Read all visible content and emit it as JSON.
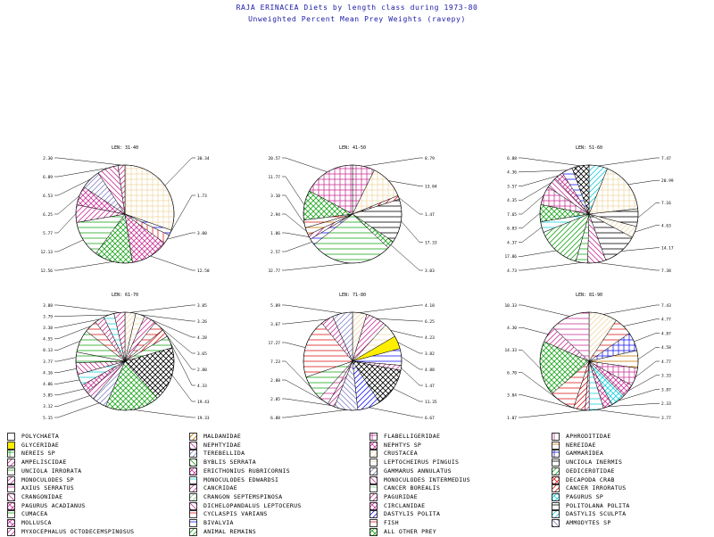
{
  "header": {
    "title": "RAJA ERINACEA Diets by length class during 1973-80",
    "subtitle": "Unweighted Percent Mean Prey Weights (ravepy)"
  },
  "legend": [
    {
      "label": "POLYCHAETA",
      "color": "#1a1aff",
      "pattern": "solid-white"
    },
    {
      "label": "GLYCERIDAE",
      "color": "#ffee00",
      "pattern": "solid"
    },
    {
      "label": "NEREIS SP",
      "color": "#1aa61a",
      "pattern": "grid"
    },
    {
      "label": "AMPELISCIDAE",
      "color": "#cc3399",
      "pattern": "diag"
    },
    {
      "label": "UNCIOLA IRRORATA",
      "color": "#1aa61a",
      "pattern": "hlines"
    },
    {
      "label": "MONOCULODES SP",
      "color": "#cc3399",
      "pattern": "diag"
    },
    {
      "label": "AXIUS SERRATUS",
      "color": "#cc3399",
      "pattern": "hlines"
    },
    {
      "label": "CRANGONIDAE",
      "color": "#cc3399",
      "pattern": "diag2"
    },
    {
      "label": "PAGURUS ACADIANUS",
      "color": "#cc3399",
      "pattern": "cross"
    },
    {
      "label": "CUMACEA",
      "color": "#1aa61a",
      "pattern": "hlines"
    },
    {
      "label": "MOLLUSCA",
      "color": "#cc3399",
      "pattern": "cross"
    },
    {
      "label": "MYXOCEPHALUS OCTODECEMSPINOSUS",
      "color": "#cc3399",
      "pattern": "diag"
    },
    {
      "label": "MALDANIDAE",
      "color": "#cc7a00",
      "pattern": "diag"
    },
    {
      "label": "NEPHTYIDAE",
      "color": "#cc3399",
      "pattern": "diag2"
    },
    {
      "label": "TEREBELLIDA",
      "color": "#8888cc",
      "pattern": "diag"
    },
    {
      "label": "BYBLIS SERRATA",
      "color": "#1aa61a",
      "pattern": "diag2"
    },
    {
      "label": "ERICTHONIUS RUBRICORNIS",
      "color": "#cc3399",
      "pattern": "cross"
    },
    {
      "label": "MONOCULODES EDWARDSI",
      "color": "#1ad0e0",
      "pattern": "hlines"
    },
    {
      "label": "CANCRIDAE",
      "color": "#cc3399",
      "pattern": "diag"
    },
    {
      "label": "CRANGON SEPTEMSPINOSA",
      "color": "#88cc88",
      "pattern": "diag"
    },
    {
      "label": "DICHELOPANDALUS LEPTOCERUS",
      "color": "#cc3399",
      "pattern": "diag2"
    },
    {
      "label": "CYCLASPIS VARIANS",
      "color": "#e01a1a",
      "pattern": "hlines"
    },
    {
      "label": "BIVALVIA",
      "color": "#1a1aff",
      "pattern": "hlines"
    },
    {
      "label": "ANIMAL REMAINS",
      "color": "#1aa61a",
      "pattern": "diag"
    },
    {
      "label": "FLABELLIGERIDAE",
      "color": "#cc3399",
      "pattern": "grid"
    },
    {
      "label": "NEPHTYS SP",
      "color": "#cc3399",
      "pattern": "cross"
    },
    {
      "label": "CRUSTACEA",
      "color": "#f0d9a8",
      "pattern": "diag"
    },
    {
      "label": "LEPTOCHEIRUS PINGUIS",
      "color": "#f0d9a8",
      "pattern": "hlines"
    },
    {
      "label": "GAMMARUS ANNULATUS",
      "color": "#8888cc",
      "pattern": "diag"
    },
    {
      "label": "MONOCULODES INTERMEDIUS",
      "color": "#cc3399",
      "pattern": "diag2"
    },
    {
      "label": "CANCER BOREALIS",
      "color": "#88cc88",
      "pattern": "hlines"
    },
    {
      "label": "PAGURIDAE",
      "color": "#cc3399",
      "pattern": "diag"
    },
    {
      "label": "CIRCLANIDAE",
      "color": "#cc3399",
      "pattern": "cross"
    },
    {
      "label": "DASTYLIS POLITA",
      "color": "#1a1aff",
      "pattern": "diag"
    },
    {
      "label": "FISH",
      "color": "#e01a1a",
      "pattern": "hlines"
    },
    {
      "label": "ALL OTHER PREY",
      "color": "#1aa61a",
      "pattern": "cross"
    },
    {
      "label": "APHRODITIDAE",
      "color": "#cc3399",
      "pattern": "vlines"
    },
    {
      "label": "NEREIDAE",
      "color": "#cc7a00",
      "pattern": "hlines"
    },
    {
      "label": "GAMMARIDEA",
      "color": "#1a1aff",
      "pattern": "grid"
    },
    {
      "label": "UNCIOLA INERMIS",
      "color": "#000000",
      "pattern": "hlines"
    },
    {
      "label": "OEDICEROTIDAE",
      "color": "#1aa61a",
      "pattern": "diag"
    },
    {
      "label": "DECAPODA CRAB",
      "color": "#e01a1a",
      "pattern": "cross"
    },
    {
      "label": "CANCER IRRORATUS",
      "color": "#e01a1a",
      "pattern": "diag"
    },
    {
      "label": "PAGURUS SP",
      "color": "#1ad0e0",
      "pattern": "cross"
    },
    {
      "label": "POLITOLANA POLITA",
      "color": "#000000",
      "pattern": "hlines"
    },
    {
      "label": "DASTYLIS SCULPTA",
      "color": "#1ad0e0",
      "pattern": "diag"
    },
    {
      "label": "AMMODYTES SP",
      "color": "#8888cc",
      "pattern": "diag2"
    }
  ],
  "chart_data": [
    {
      "type": "pie",
      "title": "LEN: 31-40",
      "slices": [
        {
          "name": "CRUSTACEA",
          "value": 30.34,
          "color": "#f0d9a8",
          "pattern": "grid",
          "label": "30.34"
        },
        {
          "name": "PAGURUS SP",
          "value": 1.73,
          "color": "#1a1aff",
          "pattern": "hlines",
          "label": "1.73"
        },
        {
          "name": "FISH",
          "value": 3.0,
          "color": "#e01a1a",
          "pattern": "vlines",
          "label": "3.00"
        },
        {
          "name": "DECAPODA CRAB",
          "value": 12.5,
          "color": "#cc3399",
          "pattern": "cross",
          "label": "12.50"
        },
        {
          "name": "OEDICEROTIDAE",
          "value": 12.56,
          "color": "#1aa61a",
          "pattern": "cross",
          "label": "12.56"
        },
        {
          "name": "CUMACEA",
          "value": 12.13,
          "color": "#1aa61a",
          "pattern": "hlines",
          "label": "12.13"
        },
        {
          "name": "AMPELISCIDAE",
          "value": 5.77,
          "color": "#cc3399",
          "pattern": "diag",
          "label": "5.77"
        },
        {
          "name": "MOLLUSCA",
          "value": 6.25,
          "color": "#cc3399",
          "pattern": "cross",
          "label": "6.25"
        },
        {
          "name": "MONOCULODES SP",
          "value": 6.53,
          "color": "#8888cc",
          "pattern": "diag",
          "label": "6.53"
        },
        {
          "name": "CANCRIDAE",
          "value": 6.89,
          "color": "#cc3399",
          "pattern": "diag2",
          "label": "6.89"
        },
        {
          "name": "PAGURUS ACADIANUS",
          "value": 2.3,
          "color": "#cc3399",
          "pattern": "diag",
          "label": "2.30"
        }
      ]
    },
    {
      "type": "pie",
      "title": "LEN: 41-50",
      "slices": [
        {
          "name": "AMPELISCIDAE",
          "value": 8.79,
          "color": "#cc3399",
          "pattern": "grid",
          "label": "8.79"
        },
        {
          "name": "CRUSTACEA",
          "value": 13.84,
          "color": "#f0d9a8",
          "pattern": "grid",
          "label": "13.84"
        },
        {
          "name": "CYCLASPIS VARIANS",
          "value": 1.47,
          "color": "#e01a1a",
          "pattern": "diag",
          "label": "1.47"
        },
        {
          "name": "CANCER BOREALIS",
          "value": 17.33,
          "color": "#000000",
          "pattern": "hlines",
          "label": "17.33"
        },
        {
          "name": "ALL OTHER PREY",
          "value": 3.03,
          "color": "#1aa61a",
          "pattern": "cross",
          "label": "3.03"
        },
        {
          "name": "NEREIS SP",
          "value": 32.77,
          "color": "#1aa61a",
          "pattern": "hlines",
          "label": "32.77"
        },
        {
          "name": "BYBLIS SERRATA",
          "value": 2.57,
          "color": "#1a1aff",
          "pattern": "hlines",
          "label": "2.57"
        },
        {
          "name": "AXIUS SERRATUS",
          "value": 1.86,
          "color": "#cc3399",
          "pattern": "diag",
          "label": "1.86"
        },
        {
          "name": "MALDANIDAE",
          "value": 2.94,
          "color": "#cc7a00",
          "pattern": "hlines",
          "label": "2.94"
        },
        {
          "name": "CRANGON SEPTEMSPINOSA",
          "value": 3.1,
          "color": "#e01a1a",
          "pattern": "hlines",
          "label": "3.10"
        },
        {
          "name": "OEDICEROTIDAE",
          "value": 11.77,
          "color": "#1aa61a",
          "pattern": "cross",
          "label": "11.77"
        },
        {
          "name": "CANCER IRRORATUS",
          "value": 20.57,
          "color": "#cc3399",
          "pattern": "grid",
          "label": "20.57"
        }
      ]
    },
    {
      "type": "pie",
      "title": "LEN: 51-60",
      "slices": [
        {
          "name": "CRUSTACEA",
          "value": 7.47,
          "color": "#1ad0e0",
          "pattern": "diag",
          "label": "7.47"
        },
        {
          "name": "GAMMARIDEA",
          "value": 20.99,
          "color": "#f0d9a8",
          "pattern": "grid",
          "label": "20.99"
        },
        {
          "name": "UNCIOLA INERMIS",
          "value": 7.16,
          "color": "#000000",
          "pattern": "hlines",
          "label": "7.16"
        },
        {
          "name": "LEPTOCHEIRUS PINGUIS",
          "value": 4.63,
          "color": "#f0d9a8",
          "pattern": "diag",
          "label": "4.63"
        },
        {
          "name": "CANCER BOREALIS",
          "value": 14.17,
          "color": "#000000",
          "pattern": "hlines",
          "label": "14.17"
        },
        {
          "name": "DICHELOPANDALUS LEPTOCERUS",
          "value": 7.38,
          "color": "#cc3399",
          "pattern": "diag2",
          "label": "7.38"
        },
        {
          "name": "NEREIDAE",
          "value": 4.73,
          "color": "#1aa61a",
          "pattern": "hlines",
          "label": "4.73"
        },
        {
          "name": "PAGURUS ACADIANUS",
          "value": 17.86,
          "color": "#1aa61a",
          "pattern": "diag",
          "label": "17.86"
        },
        {
          "name": "MONOCULODES EDWARDSI",
          "value": 4.37,
          "color": "#1ad0e0",
          "pattern": "hlines",
          "label": "4.37"
        },
        {
          "name": "ANIMAL REMAINS",
          "value": 6.83,
          "color": "#1aa61a",
          "pattern": "cross",
          "label": "6.83"
        },
        {
          "name": "FLABELLIGERIDAE",
          "value": 7.65,
          "color": "#cc3399",
          "pattern": "grid",
          "label": "7.65"
        },
        {
          "name": "CRANGONIDAE",
          "value": 4.35,
          "color": "#cc3399",
          "pattern": "diag2",
          "label": "4.35"
        },
        {
          "name": "PAGURUS SP",
          "value": 3.57,
          "color": "#cc3399",
          "pattern": "cross",
          "label": "3.57"
        },
        {
          "name": "BIVALVIA",
          "value": 4.36,
          "color": "#1a1aff",
          "pattern": "hlines",
          "label": "4.36"
        },
        {
          "name": "APHRODITIDAE",
          "value": 6.88,
          "color": "#000000",
          "pattern": "cross",
          "label": "6.88"
        }
      ]
    },
    {
      "type": "pie",
      "title": "LEN: 61-70",
      "slices": [
        {
          "name": "CANCER IRRORATUS",
          "value": 3.85,
          "color": "#f0d9a8",
          "pattern": "diag",
          "label": "3.85"
        },
        {
          "name": "LEPTOCHEIRUS PINGUIS",
          "value": 3.26,
          "color": "#f0d9a8",
          "pattern": "hlines",
          "label": "3.26"
        },
        {
          "name": "MOLLUSCA",
          "value": 4.28,
          "color": "#cc3399",
          "pattern": "diag",
          "label": "4.28"
        },
        {
          "name": "DECAPODA CRAB",
          "value": 3.65,
          "color": "#e01a1a",
          "pattern": "hlines",
          "label": "3.65"
        },
        {
          "name": "FISH",
          "value": 2.8,
          "color": "#e01a1a",
          "pattern": "diag",
          "label": "2.80"
        },
        {
          "name": "POLITOLANA POLITA",
          "value": 4.33,
          "color": "#1aa61a",
          "pattern": "hlines",
          "label": "4.33"
        },
        {
          "name": "CANCER BOREALIS",
          "value": 19.43,
          "color": "#000000",
          "pattern": "cross",
          "label": "19.43"
        },
        {
          "name": "ALL OTHER PREY",
          "value": 19.33,
          "color": "#1aa61a",
          "pattern": "cross",
          "label": "19.33"
        },
        {
          "name": "MYXOCEPHALUS OCTODECEMSPINOSUS",
          "value": 5.15,
          "color": "#8888cc",
          "pattern": "diag",
          "label": "5.15"
        },
        {
          "name": "DICHELOPANDALUS LEPTOCERUS",
          "value": 3.12,
          "color": "#cc3399",
          "pattern": "diag",
          "label": "3.12"
        },
        {
          "name": "ERICTHONIUS RUBRICORNIS",
          "value": 3.05,
          "color": "#cc3399",
          "pattern": "cross",
          "label": "3.05"
        },
        {
          "name": "DASTYLIS SCULPTA",
          "value": 4.06,
          "color": "#1ad0e0",
          "pattern": "hlines",
          "label": "4.06"
        },
        {
          "name": "MONOCULODES INTERMEDIUS",
          "value": 4.16,
          "color": "#cc3399",
          "pattern": "diag2",
          "label": "4.16"
        },
        {
          "name": "AMMODYTES SP",
          "value": 3.77,
          "color": "#1aa61a",
          "pattern": "hlines",
          "label": "3.77"
        },
        {
          "name": "NEREIS SP",
          "value": 8.13,
          "color": "#1aa61a",
          "pattern": "hlines",
          "label": "8.13"
        },
        {
          "name": "BYBLIS SERRATA",
          "value": 4.55,
          "color": "#e01a1a",
          "pattern": "hlines",
          "label": "4.55"
        },
        {
          "name": "AMPELISCIDAE",
          "value": 3.38,
          "color": "#cc3399",
          "pattern": "diag",
          "label": "3.38"
        },
        {
          "name": "PAGURUS SP",
          "value": 3.79,
          "color": "#1ad0e0",
          "pattern": "hlines",
          "label": "3.79"
        },
        {
          "name": "CANCRIDAE",
          "value": 3.88,
          "color": "#cc3399",
          "pattern": "diag",
          "label": "3.88"
        }
      ]
    },
    {
      "type": "pie",
      "title": "LEN: 71-80",
      "slices": [
        {
          "name": "CRUSTACEA",
          "value": 4.18,
          "color": "#f0d9a8",
          "pattern": "diag",
          "label": "4.18"
        },
        {
          "name": "CANCER IRRORATUS",
          "value": 6.25,
          "color": "#cc3399",
          "pattern": "diag",
          "label": "6.25"
        },
        {
          "name": "LEPTOCHEIRUS PINGUIS",
          "value": 4.23,
          "color": "#f0d9a8",
          "pattern": "hlines",
          "label": "4.23"
        },
        {
          "name": "GLYCERIDAE",
          "value": 3.82,
          "color": "#ffee00",
          "pattern": "solid",
          "label": "3.82"
        },
        {
          "name": "POLYCHAETA",
          "value": 4.88,
          "color": "#1a1aff",
          "pattern": "hlines",
          "label": "4.88"
        },
        {
          "name": "PAGURIDAE",
          "value": 1.47,
          "color": "#cc3399",
          "pattern": "diag",
          "label": "1.47"
        },
        {
          "name": "CANCER BOREALIS",
          "value": 11.35,
          "color": "#000000",
          "pattern": "cross",
          "label": "11.35"
        },
        {
          "name": "DASTYLIS POLITA",
          "value": 6.67,
          "color": "#1a1aff",
          "pattern": "diag",
          "label": "6.67"
        },
        {
          "name": "OEDICEROTIDAE",
          "value": 6.88,
          "color": "#8888cc",
          "pattern": "diag2",
          "label": "6.88"
        },
        {
          "name": "MONOCULODES SP",
          "value": 2.05,
          "color": "#cc3399",
          "pattern": "diag",
          "label": "2.05"
        },
        {
          "name": "AXIUS SERRATUS",
          "value": 2.88,
          "color": "#cc3399",
          "pattern": "hlines",
          "label": "2.88"
        },
        {
          "name": "NEREIS SP",
          "value": 7.23,
          "color": "#1aa61a",
          "pattern": "hlines",
          "label": "7.23"
        },
        {
          "name": "FISH",
          "value": 17.27,
          "color": "#e01a1a",
          "pattern": "hlines",
          "label": "17.27"
        },
        {
          "name": "AMPELISCIDAE",
          "value": 3.67,
          "color": "#cc3399",
          "pattern": "diag",
          "label": "3.67"
        },
        {
          "name": "MONOCULODES INTERMEDIUS",
          "value": 5.89,
          "color": "#8888cc",
          "pattern": "diag",
          "label": "5.89"
        }
      ]
    },
    {
      "type": "pie",
      "title": "LEN: 81-90",
      "slices": [
        {
          "name": "CRUSTACEA",
          "value": 7.43,
          "color": "#f0d9a8",
          "pattern": "diag",
          "label": "7.43"
        },
        {
          "name": "CANCER BOREALIS",
          "value": 4.77,
          "color": "#e01a1a",
          "pattern": "hlines",
          "label": "4.77"
        },
        {
          "name": "GAMMARIDEA",
          "value": 4.87,
          "color": "#1a1aff",
          "pattern": "grid",
          "label": "4.87"
        },
        {
          "name": "UNCIOLA INERMIS",
          "value": 4.58,
          "color": "#cc7a00",
          "pattern": "hlines",
          "label": "4.58"
        },
        {
          "name": "DECAPODA CRAB",
          "value": 4.77,
          "color": "#cc3399",
          "pattern": "grid",
          "label": "4.77"
        },
        {
          "name": "PAGURUS SP",
          "value": 3.33,
          "color": "#cc3399",
          "pattern": "cross",
          "label": "3.33"
        },
        {
          "name": "POLITOLANA POLITA",
          "value": 3.87,
          "color": "#1ad0e0",
          "pattern": "cross",
          "label": "3.87"
        },
        {
          "name": "DASTYLIS SCULPTA",
          "value": 2.33,
          "color": "#cc3399",
          "pattern": "cross",
          "label": "2.33"
        },
        {
          "name": "ANIMAL REMAINS",
          "value": 3.77,
          "color": "#1ad0e0",
          "pattern": "hlines",
          "label": "3.77"
        },
        {
          "name": "NEREIDAE",
          "value": 1.07,
          "color": "#cc3399",
          "pattern": "diag",
          "label": "1.07"
        },
        {
          "name": "APHRODITIDAE",
          "value": 3.04,
          "color": "#e01a1a",
          "pattern": "diag",
          "label": "3.04"
        },
        {
          "name": "FISH",
          "value": 6.7,
          "color": "#e01a1a",
          "pattern": "hlines",
          "label": "6.70"
        },
        {
          "name": "ALL OTHER PREY",
          "value": 14.33,
          "color": "#1aa61a",
          "pattern": "cross",
          "label": "14.33"
        },
        {
          "name": "MONOCULODES EDWARDSI",
          "value": 4.3,
          "color": "#cc3399",
          "pattern": "diag",
          "label": "4.30"
        },
        {
          "name": "AMMODYTES SP",
          "value": 10.33,
          "color": "#cc3399",
          "pattern": "hlines",
          "label": "10.33"
        }
      ]
    }
  ]
}
